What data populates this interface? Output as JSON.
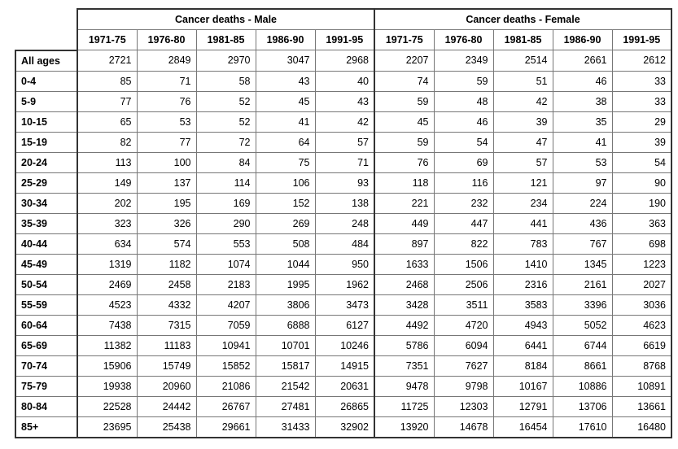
{
  "table": {
    "groups": [
      {
        "title": "Cancer deaths - Male",
        "periods": [
          "1971-75",
          "1976-80",
          "1981-85",
          "1986-90",
          "1991-95"
        ]
      },
      {
        "title": "Cancer deaths - Female",
        "periods": [
          "1971-75",
          "1976-80",
          "1981-85",
          "1986-90",
          "1991-95"
        ]
      }
    ],
    "rows": [
      {
        "label": "All ages",
        "male": [
          2721,
          2849,
          2970,
          3047,
          2968
        ],
        "female": [
          2207,
          2349,
          2514,
          2661,
          2612
        ]
      },
      {
        "label": "0-4",
        "male": [
          85,
          71,
          58,
          43,
          40
        ],
        "female": [
          74,
          59,
          51,
          46,
          33
        ]
      },
      {
        "label": "5-9",
        "male": [
          77,
          76,
          52,
          45,
          43
        ],
        "female": [
          59,
          48,
          42,
          38,
          33
        ]
      },
      {
        "label": "10-15",
        "male": [
          65,
          53,
          52,
          41,
          42
        ],
        "female": [
          45,
          46,
          39,
          35,
          29
        ]
      },
      {
        "label": "15-19",
        "male": [
          82,
          77,
          72,
          64,
          57
        ],
        "female": [
          59,
          54,
          47,
          41,
          39
        ]
      },
      {
        "label": "20-24",
        "male": [
          113,
          100,
          84,
          75,
          71
        ],
        "female": [
          76,
          69,
          57,
          53,
          54
        ]
      },
      {
        "label": "25-29",
        "male": [
          149,
          137,
          114,
          106,
          93
        ],
        "female": [
          118,
          116,
          121,
          97,
          90
        ]
      },
      {
        "label": "30-34",
        "male": [
          202,
          195,
          169,
          152,
          138
        ],
        "female": [
          221,
          232,
          234,
          224,
          190
        ]
      },
      {
        "label": "35-39",
        "male": [
          323,
          326,
          290,
          269,
          248
        ],
        "female": [
          449,
          447,
          441,
          436,
          363
        ]
      },
      {
        "label": "40-44",
        "male": [
          634,
          574,
          553,
          508,
          484
        ],
        "female": [
          897,
          822,
          783,
          767,
          698
        ]
      },
      {
        "label": "45-49",
        "male": [
          1319,
          1182,
          1074,
          1044,
          950
        ],
        "female": [
          1633,
          1506,
          1410,
          1345,
          1223
        ]
      },
      {
        "label": "50-54",
        "male": [
          2469,
          2458,
          2183,
          1995,
          1962
        ],
        "female": [
          2468,
          2506,
          2316,
          2161,
          2027
        ]
      },
      {
        "label": "55-59",
        "male": [
          4523,
          4332,
          4207,
          3806,
          3473
        ],
        "female": [
          3428,
          3511,
          3583,
          3396,
          3036
        ]
      },
      {
        "label": "60-64",
        "male": [
          7438,
          7315,
          7059,
          6888,
          6127
        ],
        "female": [
          4492,
          4720,
          4943,
          5052,
          4623
        ]
      },
      {
        "label": "65-69",
        "male": [
          11382,
          11183,
          10941,
          10701,
          10246
        ],
        "female": [
          5786,
          6094,
          6441,
          6744,
          6619
        ]
      },
      {
        "label": "70-74",
        "male": [
          15906,
          15749,
          15852,
          15817,
          14915
        ],
        "female": [
          7351,
          7627,
          8184,
          8661,
          8768
        ]
      },
      {
        "label": "75-79",
        "male": [
          19938,
          20960,
          21086,
          21542,
          20631
        ],
        "female": [
          9478,
          9798,
          10167,
          10886,
          10891
        ]
      },
      {
        "label": "80-84",
        "male": [
          22528,
          24442,
          26767,
          27481,
          26865
        ],
        "female": [
          11725,
          12303,
          12791,
          13706,
          13661
        ]
      },
      {
        "label": "85+",
        "male": [
          23695,
          25438,
          29661,
          31433,
          32902
        ],
        "female": [
          13920,
          14678,
          16454,
          17610,
          16480
        ]
      }
    ]
  }
}
